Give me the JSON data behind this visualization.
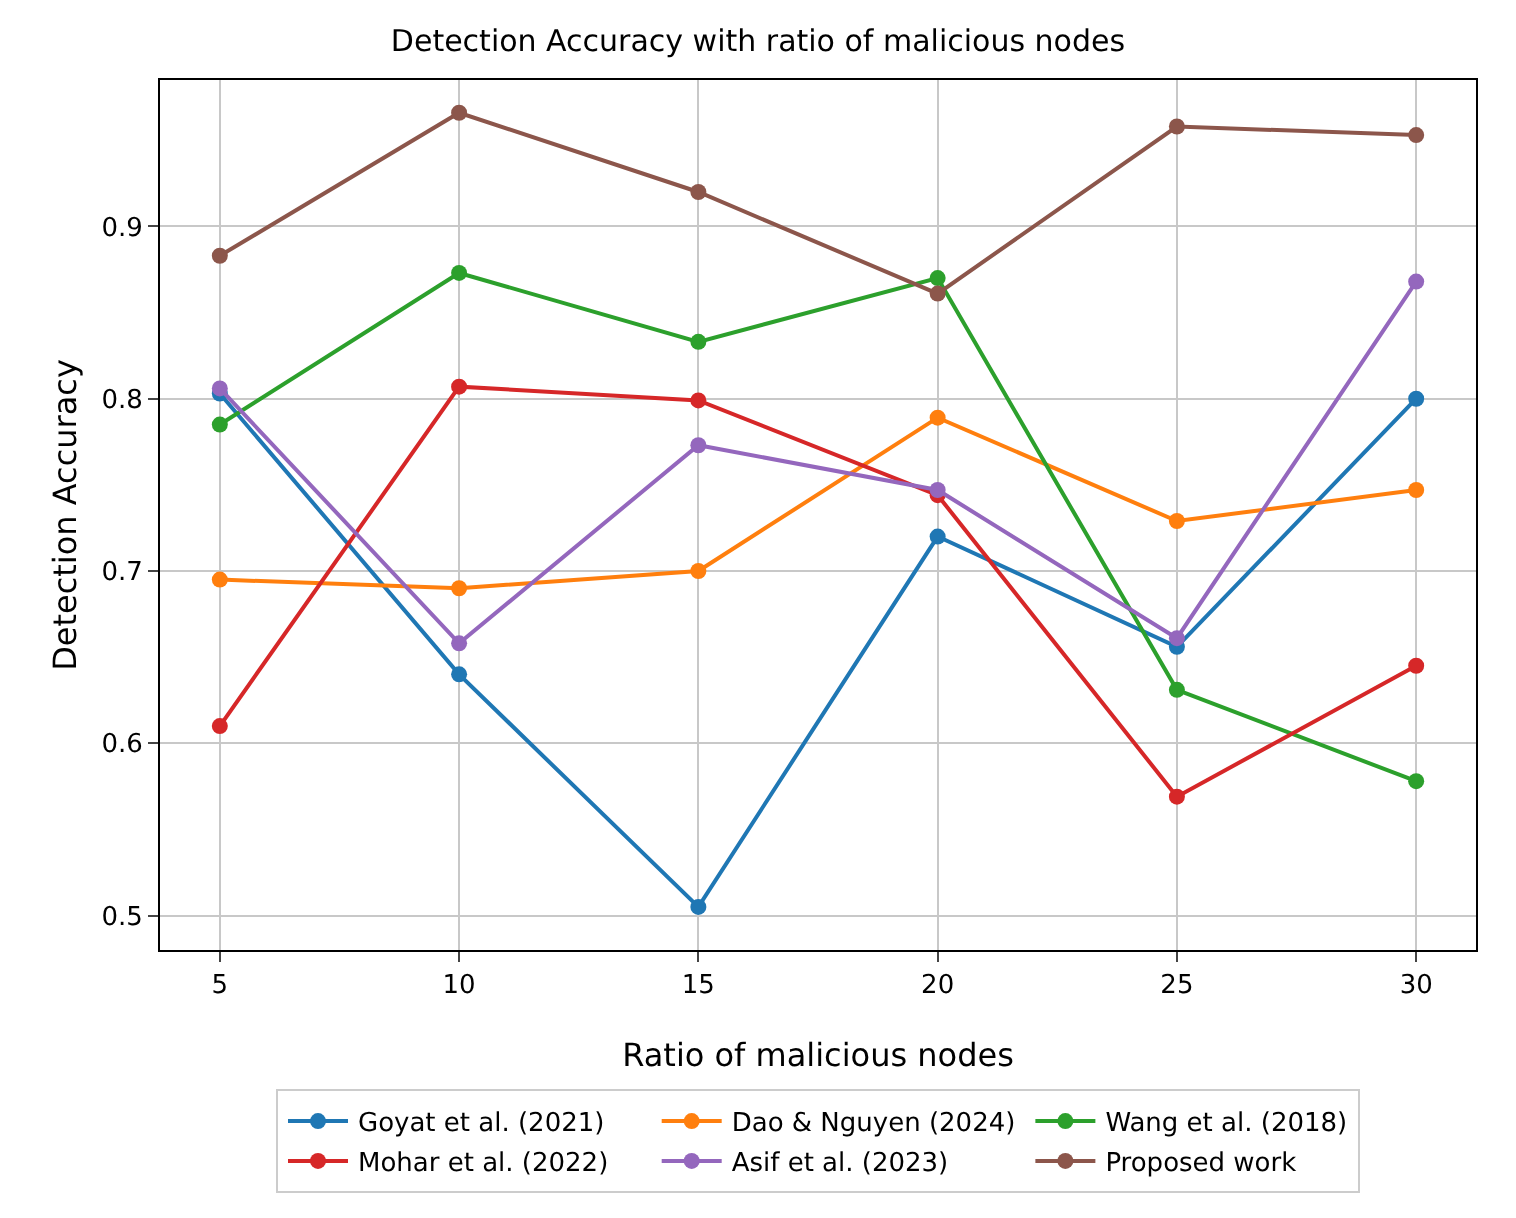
{
  "chart_data": {
    "type": "line",
    "title": "Detection Accuracy with ratio of malicious nodes",
    "xlabel": "Ratio of malicious nodes",
    "ylabel": "Detection Accuracy",
    "x": [
      5,
      10,
      15,
      20,
      25,
      30
    ],
    "series": [
      {
        "name": "Goyat et al. (2021)",
        "color": "#1f77b4",
        "values": [
          0.803,
          0.64,
          0.505,
          0.72,
          0.656,
          0.8
        ]
      },
      {
        "name": "Dao & Nguyen (2024)",
        "color": "#ff7f0e",
        "values": [
          0.695,
          0.69,
          0.7,
          0.789,
          0.729,
          0.747
        ]
      },
      {
        "name": "Wang et al. (2018)",
        "color": "#2ca02c",
        "values": [
          0.785,
          0.873,
          0.833,
          0.87,
          0.631,
          0.578
        ]
      },
      {
        "name": "Mohar et al. (2022)",
        "color": "#d62728",
        "values": [
          0.61,
          0.807,
          0.799,
          0.744,
          0.569,
          0.645
        ]
      },
      {
        "name": "Asif et al. (2023)",
        "color": "#9467bd",
        "values": [
          0.806,
          0.658,
          0.773,
          0.747,
          0.661,
          0.868
        ]
      },
      {
        "name": "Proposed work",
        "color": "#8c564b",
        "values": [
          0.883,
          0.966,
          0.92,
          0.861,
          0.958,
          0.953
        ]
      }
    ],
    "xlim": [
      3.75,
      31.25
    ],
    "xticks": [
      5,
      10,
      15,
      20,
      25,
      30
    ],
    "ylim": [
      0.48,
      0.985
    ],
    "yticks": [
      0.5,
      0.6,
      0.7,
      0.8,
      0.9
    ],
    "grid": true,
    "legend": "bottom",
    "marker": "circle",
    "line_style": "solid"
  }
}
